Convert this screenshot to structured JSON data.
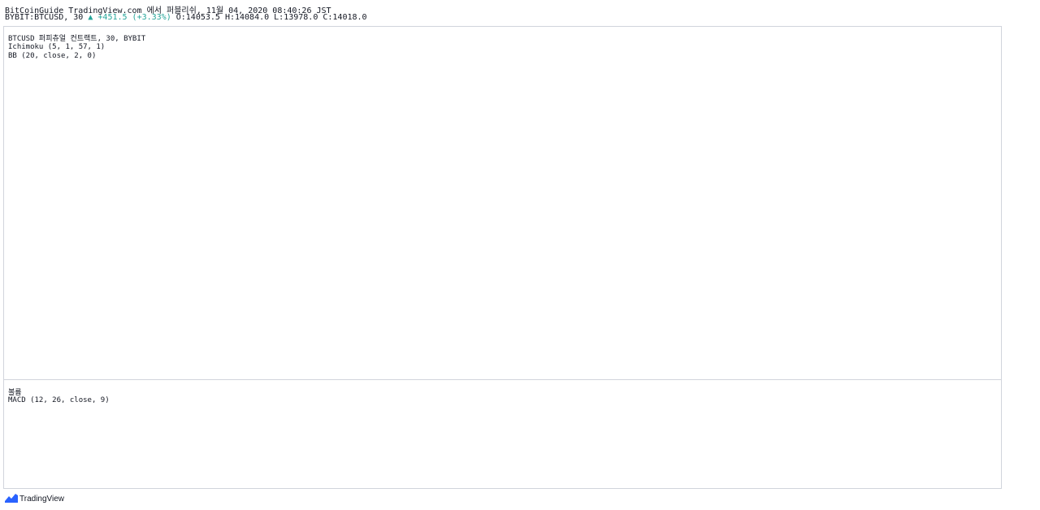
{
  "header": {
    "title": "BitCoinGuide TradingView.com 에서 퍼블리쉬, 11월 04, 2020 08:40:26 JST",
    "symbol": "BYBIT:BTCUSD, 30",
    "change": "▲ +451.5 (+3.33%)",
    "ohlc": "O:14053.5 H:14084.0 L:13978.0 C:14018.0",
    "up_color": "#26a69a"
  },
  "legend": {
    "symbol_line": "BTCUSD 퍼피츄얼 컨트랙트, 30, BYBIT",
    "ichimoku": "Ichimoku (5, 1, 57, 1)",
    "bb": "BB (20, close, 2, 0)",
    "volume": "볼륨",
    "macd": "MACD (12, 26, close, 9)"
  },
  "footer": {
    "brand": "TradingView",
    "brand_color": "#2962ff"
  }
}
